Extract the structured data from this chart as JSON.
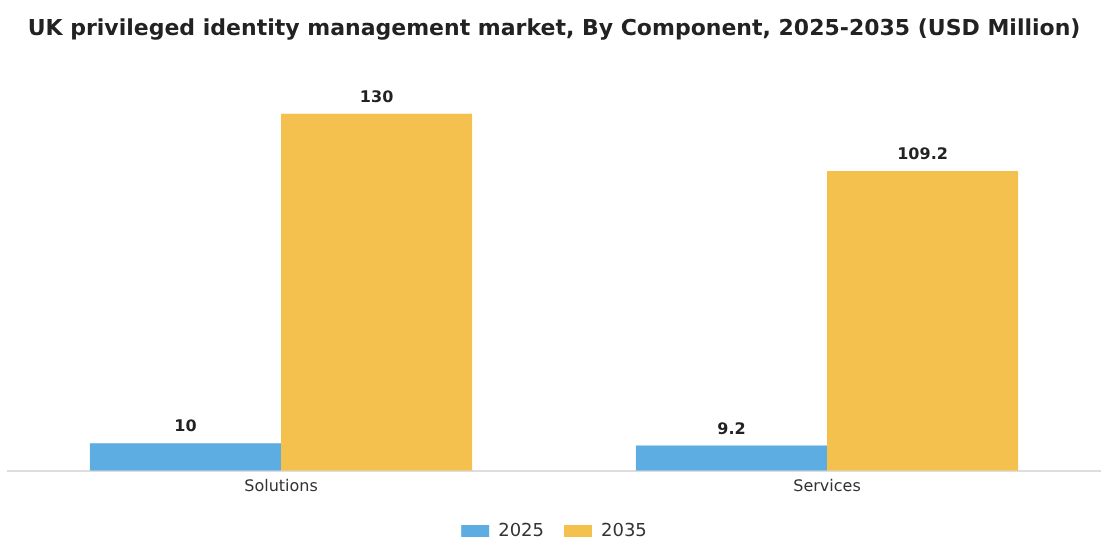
{
  "chart_data": {
    "type": "bar",
    "title": "UK privileged identity management market, By Component, 2025-2035 (USD Million)",
    "categories": [
      "Solutions",
      "Services"
    ],
    "series": [
      {
        "name": "2025",
        "color": "#5dade2",
        "values": [
          10,
          9.2
        ]
      },
      {
        "name": "2035",
        "color": "#f5c14e",
        "values": [
          130,
          109.2
        ]
      }
    ],
    "data_labels": true,
    "legend": "bottom",
    "grid": false
  }
}
